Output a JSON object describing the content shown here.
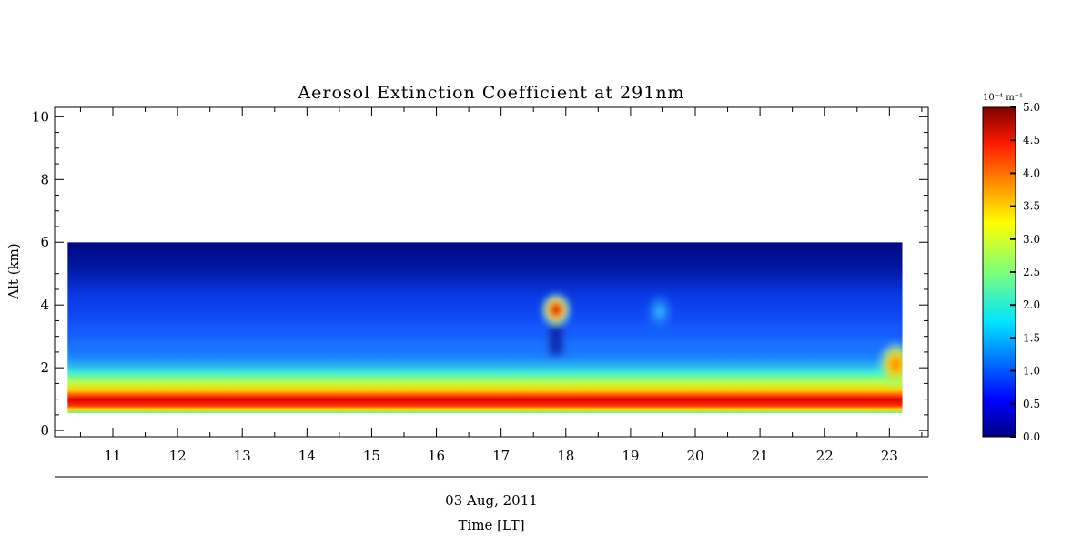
{
  "chart_data": {
    "type": "heatmap",
    "title": "Aerosol Extinction Coefficient at 291nm",
    "ylabel": "Alt (km)",
    "xlabel": "Time [LT]",
    "date_label": "03 Aug, 2011",
    "x_ticks": [
      "11",
      "12",
      "13",
      "14",
      "15",
      "16",
      "17",
      "18",
      "19",
      "20",
      "21",
      "22",
      "23"
    ],
    "y_ticks": [
      "0",
      "2",
      "4",
      "6",
      "8",
      "10"
    ],
    "xlim": [
      10.1,
      23.6
    ],
    "ylim": [
      -0.2,
      10.3
    ],
    "data_extent": {
      "x": [
        10.3,
        23.2
      ],
      "y": [
        0.55,
        6.0
      ]
    },
    "colorbar": {
      "unit_label": "10⁻⁴ m⁻¹",
      "range": [
        0.0,
        5.0
      ],
      "ticks": [
        "0.0",
        "0.5",
        "1.0",
        "1.5",
        "2.0",
        "2.5",
        "3.0",
        "3.5",
        "4.0",
        "4.5",
        "5.0"
      ],
      "colormap": "jet"
    },
    "features": [
      {
        "description": "strong layer",
        "x": [
          10.3,
          23.2
        ],
        "alt": 0.75,
        "value": 4.6
      },
      {
        "description": "transition layer",
        "x": [
          10.3,
          23.2
        ],
        "alt": 1.2,
        "value": 2.8
      },
      {
        "description": "plume",
        "x": 17.85,
        "alt": 3.85,
        "value": 4.8
      },
      {
        "description": "elevated patch",
        "x": 23.1,
        "alt": 2.1,
        "value": 4.0
      },
      {
        "description": "weak patch",
        "x": 19.45,
        "alt": 3.8,
        "value": 2.0
      }
    ],
    "grid": false
  }
}
